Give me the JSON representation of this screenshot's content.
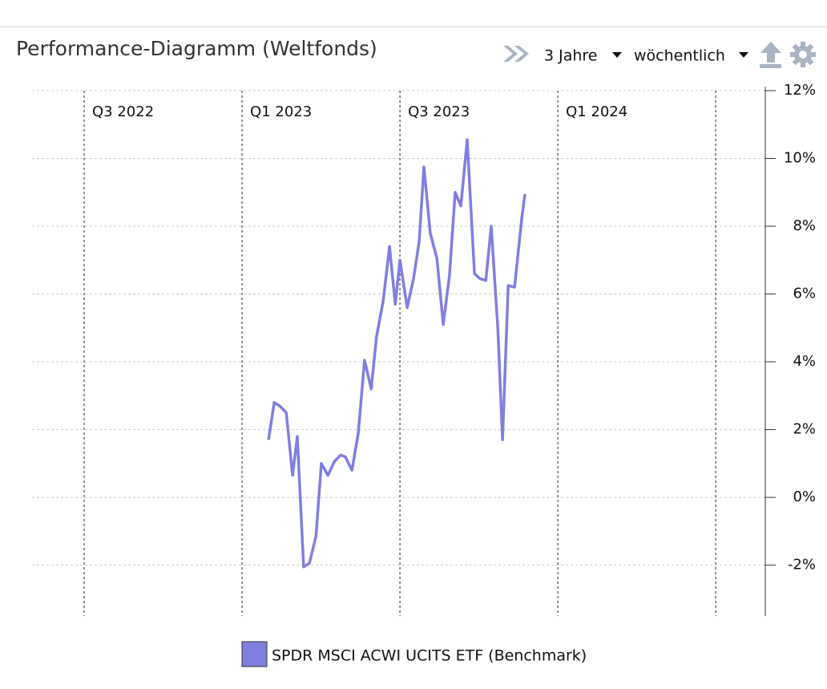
{
  "chart_data": {
    "type": "line",
    "title": "Performance-Diagramm (Weltfonds)",
    "controls": {
      "period": "3 Jahre",
      "interval": "wöchentlich"
    },
    "xlim": [
      2022.335,
      2024.657
    ],
    "xticks": [
      {
        "value": 2022.5,
        "label": "Q3 2022"
      },
      {
        "value": 2023.0,
        "label": "Q1 2023"
      },
      {
        "value": 2023.5,
        "label": "Q3 2023"
      },
      {
        "value": 2024.0,
        "label": "Q1 2024"
      },
      {
        "value": 2024.5,
        "label": null
      }
    ],
    "ylim": [
      -3.5,
      12
    ],
    "yticks": [
      {
        "value": -2,
        "label": "-2%"
      },
      {
        "value": 0,
        "label": "0%"
      },
      {
        "value": 2,
        "label": "2%"
      },
      {
        "value": 4,
        "label": "4%"
      },
      {
        "value": 6,
        "label": "6%"
      },
      {
        "value": 8,
        "label": "8%"
      },
      {
        "value": 10,
        "label": "10%"
      },
      {
        "value": 12,
        "label": "12%"
      }
    ],
    "grid": true,
    "legend": "bottom",
    "x": [
      2023.084,
      2023.102,
      2023.119,
      2023.14,
      2023.16,
      2023.175,
      2023.195,
      2023.213,
      2023.234,
      2023.251,
      2023.272,
      2023.292,
      2023.312,
      2023.327,
      2023.348,
      2023.368,
      2023.388,
      2023.409,
      2023.426,
      2023.447,
      2023.467,
      2023.485,
      2023.5,
      2023.523,
      2023.543,
      2023.561,
      2023.576,
      2023.596,
      2023.617,
      2023.637,
      2023.657,
      2023.675,
      2023.693,
      2023.713,
      2023.736,
      2023.754,
      2023.772,
      2023.789,
      2023.81,
      2023.825,
      2023.843,
      2023.863,
      2023.886,
      2023.896
    ],
    "series": [
      {
        "name": "SPDR MSCI ACWI UCITS ETF (Benchmark)",
        "color": "#7f7fe0",
        "values": [
          1.7,
          2.8,
          2.7,
          2.5,
          0.65,
          1.8,
          -2.05,
          -1.95,
          -1.15,
          1.0,
          0.65,
          1.05,
          1.25,
          1.2,
          0.8,
          1.9,
          4.05,
          3.2,
          4.75,
          5.8,
          7.4,
          5.7,
          7.0,
          5.6,
          6.45,
          7.55,
          9.75,
          7.8,
          7.05,
          5.1,
          6.55,
          9.0,
          8.6,
          10.55,
          6.6,
          6.45,
          6.4,
          8.0,
          5.0,
          1.7,
          6.25,
          6.2,
          8.25,
          8.95
        ]
      }
    ]
  }
}
